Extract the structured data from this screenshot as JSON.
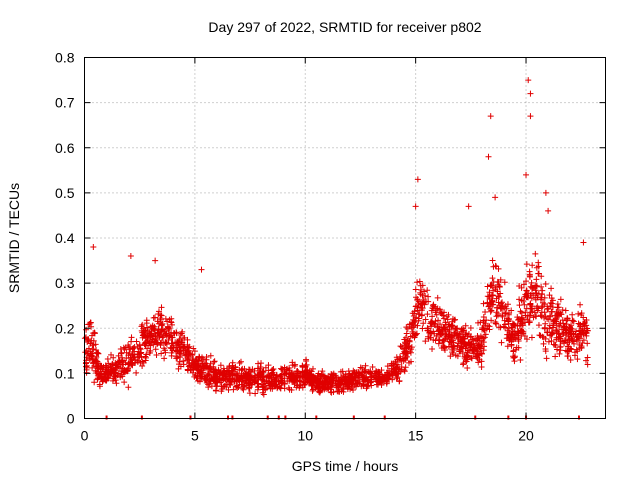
{
  "chart_data": {
    "type": "scatter",
    "title": "Day 297 of 2022, SRMTID for receiver p802",
    "xlabel": "GPS time / hours",
    "ylabel": "SRMTID / TECUs",
    "xlim": [
      0,
      23.6
    ],
    "ylim": [
      0,
      0.8
    ],
    "xticks": [
      0,
      5,
      10,
      15,
      20
    ],
    "yticks": [
      0,
      0.1,
      0.2,
      0.3,
      0.4,
      0.5,
      0.6,
      0.7,
      0.8
    ],
    "xtick_labels": [
      "0",
      "5",
      "10",
      "15",
      "20"
    ],
    "ytick_labels": [
      "0",
      "0.1",
      "0.2",
      "0.3",
      "0.4",
      "0.5",
      "0.6",
      "0.7",
      "0.8"
    ],
    "grid": true,
    "marker": "plus",
    "color": "#e00000",
    "series": [
      {
        "name": "SRMTID",
        "profile": [
          [
            0.0,
            0.13,
            0.07
          ],
          [
            0.3,
            0.17,
            0.09
          ],
          [
            0.7,
            0.09,
            0.04
          ],
          [
            1.0,
            0.1,
            0.04
          ],
          [
            1.5,
            0.11,
            0.05
          ],
          [
            2.0,
            0.13,
            0.07
          ],
          [
            2.5,
            0.16,
            0.07
          ],
          [
            3.0,
            0.18,
            0.07
          ],
          [
            3.5,
            0.19,
            0.07
          ],
          [
            4.0,
            0.17,
            0.06
          ],
          [
            4.5,
            0.15,
            0.05
          ],
          [
            5.0,
            0.12,
            0.05
          ],
          [
            5.5,
            0.11,
            0.05
          ],
          [
            6.0,
            0.09,
            0.04
          ],
          [
            7.0,
            0.09,
            0.04
          ],
          [
            8.0,
            0.09,
            0.04
          ],
          [
            9.0,
            0.09,
            0.04
          ],
          [
            10.0,
            0.1,
            0.04
          ],
          [
            10.5,
            0.08,
            0.03
          ],
          [
            11.5,
            0.08,
            0.03
          ],
          [
            12.5,
            0.09,
            0.03
          ],
          [
            13.5,
            0.09,
            0.03
          ],
          [
            14.2,
            0.11,
            0.04
          ],
          [
            14.8,
            0.18,
            0.07
          ],
          [
            15.2,
            0.26,
            0.1
          ],
          [
            15.8,
            0.21,
            0.08
          ],
          [
            16.5,
            0.18,
            0.07
          ],
          [
            17.0,
            0.17,
            0.07
          ],
          [
            17.5,
            0.15,
            0.06
          ],
          [
            18.0,
            0.18,
            0.08
          ],
          [
            18.5,
            0.28,
            0.12
          ],
          [
            19.0,
            0.24,
            0.1
          ],
          [
            19.5,
            0.17,
            0.08
          ],
          [
            20.0,
            0.26,
            0.13
          ],
          [
            20.5,
            0.27,
            0.12
          ],
          [
            21.0,
            0.22,
            0.11
          ],
          [
            21.5,
            0.2,
            0.09
          ],
          [
            22.0,
            0.18,
            0.07
          ],
          [
            22.5,
            0.19,
            0.08
          ],
          [
            22.8,
            0.17,
            0.07
          ]
        ],
        "point_count": 2400,
        "peaks": [
          {
            "x": 0.4,
            "y": 0.38
          },
          {
            "x": 2.1,
            "y": 0.36
          },
          {
            "x": 3.2,
            "y": 0.35
          },
          {
            "x": 5.3,
            "y": 0.33
          },
          {
            "x": 15.1,
            "y": 0.53
          },
          {
            "x": 15.0,
            "y": 0.47
          },
          {
            "x": 17.4,
            "y": 0.47
          },
          {
            "x": 18.4,
            "y": 0.67
          },
          {
            "x": 18.3,
            "y": 0.58
          },
          {
            "x": 18.6,
            "y": 0.49
          },
          {
            "x": 20.1,
            "y": 0.75
          },
          {
            "x": 20.2,
            "y": 0.72
          },
          {
            "x": 20.2,
            "y": 0.67
          },
          {
            "x": 20.0,
            "y": 0.54
          },
          {
            "x": 20.9,
            "y": 0.5
          },
          {
            "x": 21.0,
            "y": 0.46
          },
          {
            "x": 22.6,
            "y": 0.39
          }
        ]
      }
    ],
    "x_axis_markers": [
      1.0,
      2.6,
      4.8,
      6.5,
      6.7,
      8.3,
      8.8,
      9.1,
      10.5,
      12.2,
      13.6,
      17.7,
      19.2,
      20.0,
      22.4
    ]
  }
}
